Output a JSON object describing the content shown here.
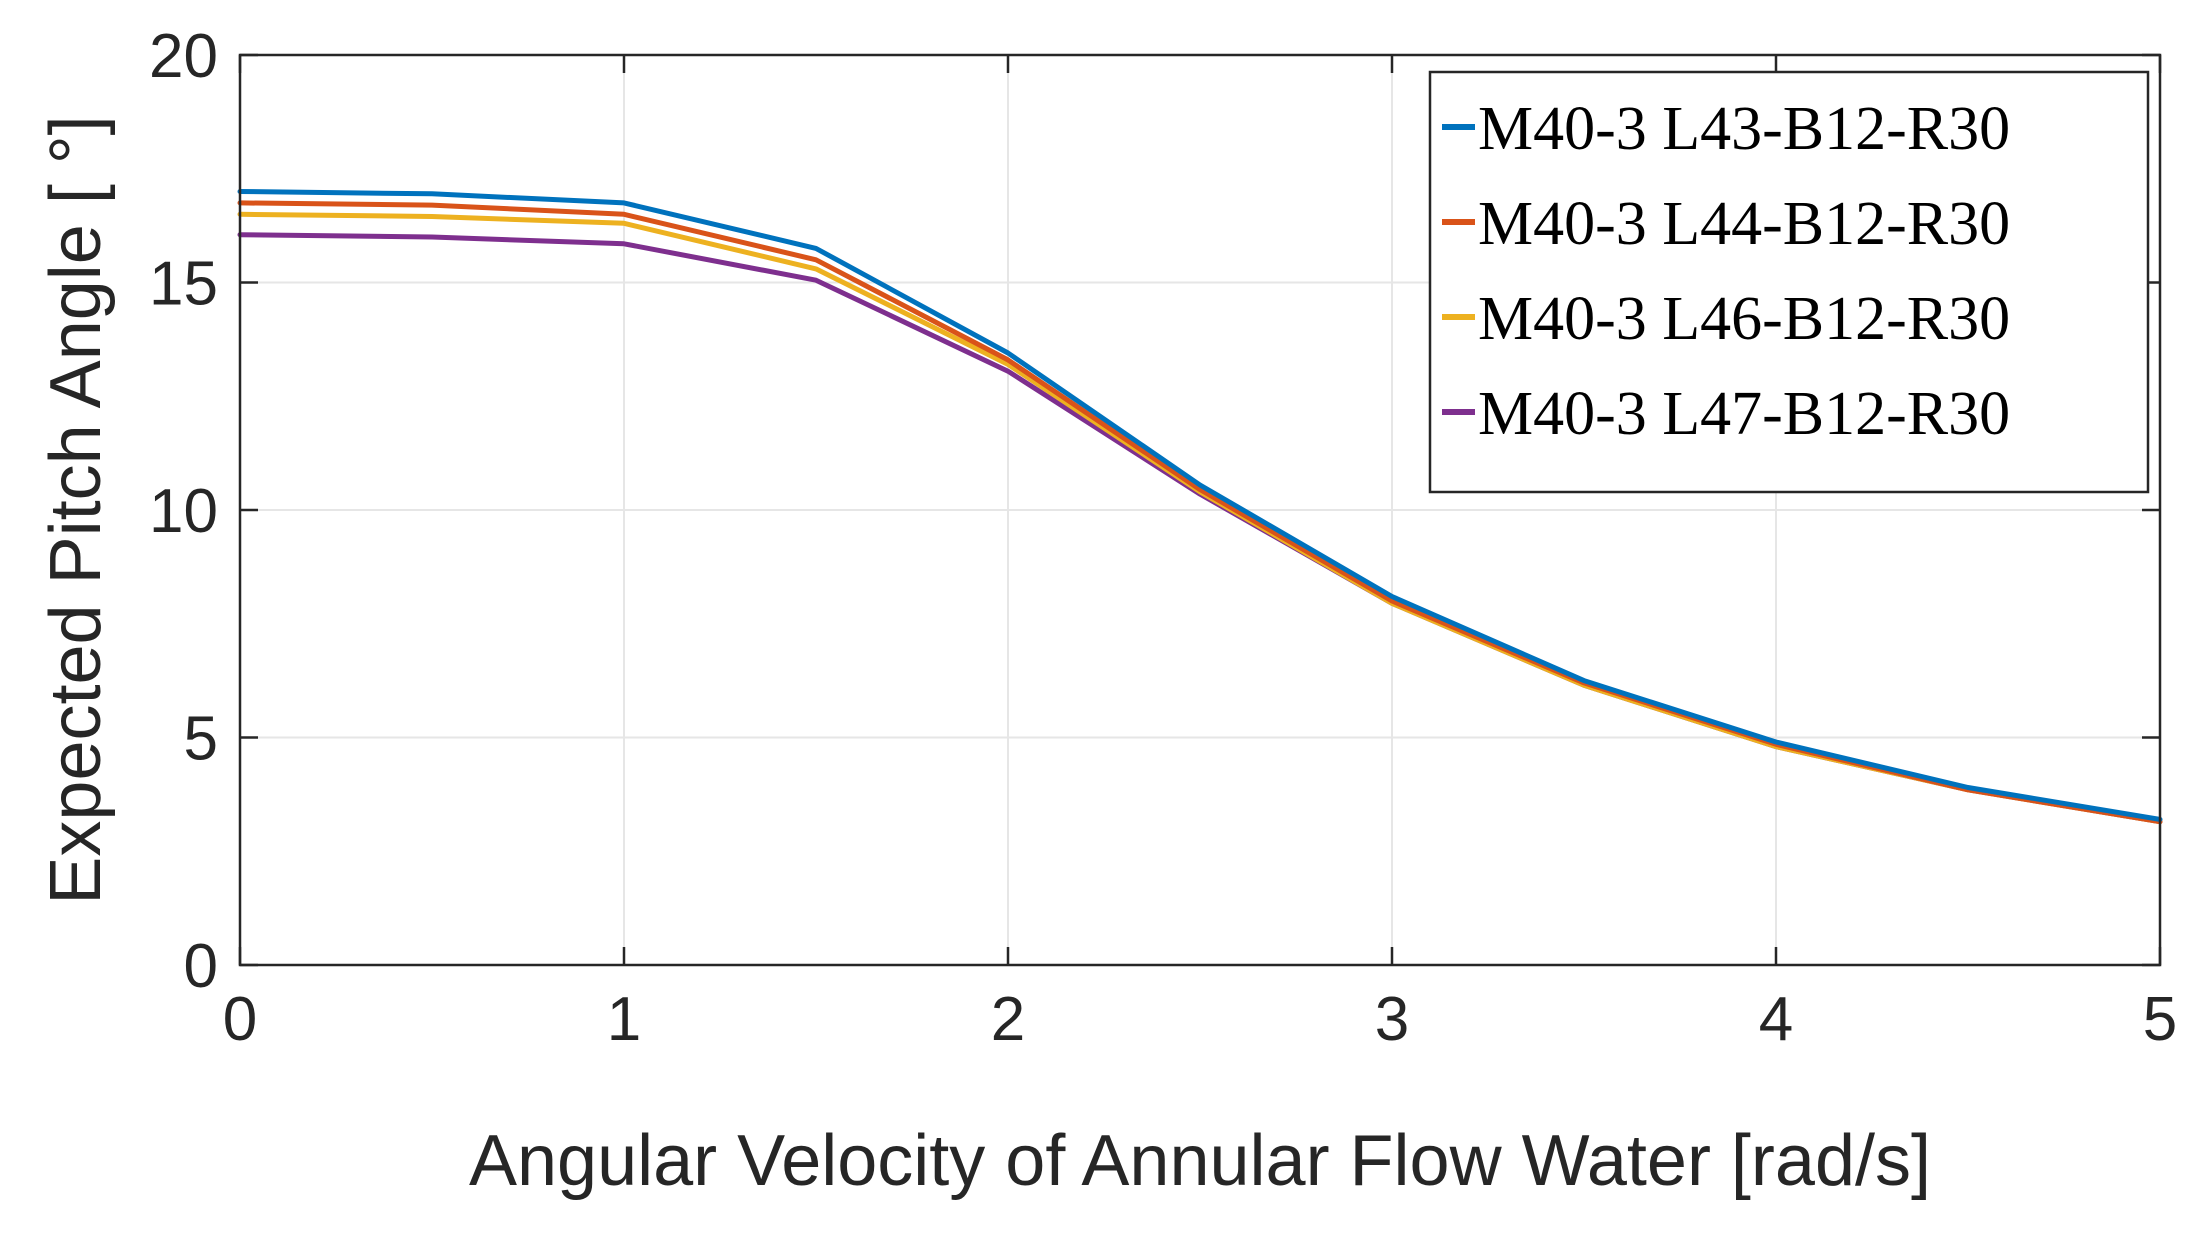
{
  "chart_data": {
    "type": "line",
    "title": "",
    "xlabel": "Angular Velocity of Annular Flow Water [rad/s]",
    "ylabel": "Expected Pitch Angle [ °]",
    "xlim": [
      0,
      5
    ],
    "ylim": [
      0,
      20
    ],
    "xticks": [
      0,
      1,
      2,
      3,
      4,
      5
    ],
    "yticks": [
      0,
      5,
      10,
      15,
      20
    ],
    "xtick_labels": [
      "0",
      "1",
      "2",
      "3",
      "4",
      "5"
    ],
    "ytick_labels": [
      "0",
      "5",
      "10",
      "15",
      "20"
    ],
    "grid": true,
    "legend_position": "top-right",
    "x": [
      0,
      0.5,
      1,
      1.5,
      2,
      2.5,
      3,
      3.5,
      4,
      4.5,
      5
    ],
    "series": [
      {
        "name": "M40-3 L43-B12-R30",
        "color": "#0072BD",
        "values": [
          17.0,
          16.95,
          16.75,
          15.75,
          13.45,
          10.55,
          8.1,
          6.25,
          4.9,
          3.9,
          3.2
        ]
      },
      {
        "name": "M40-3 L44-B12-R30",
        "color": "#D95319",
        "values": [
          16.75,
          16.7,
          16.5,
          15.5,
          13.3,
          10.45,
          8.0,
          6.2,
          4.85,
          3.85,
          3.15
        ]
      },
      {
        "name": "M40-3 L46-B12-R30",
        "color": "#EDB120",
        "values": [
          16.5,
          16.45,
          16.3,
          15.3,
          13.2,
          10.4,
          7.95,
          6.15,
          4.8,
          3.85,
          3.15
        ]
      },
      {
        "name": "M40-3 L47-B12-R30",
        "color": "#7E2F8E",
        "values": [
          16.05,
          16.0,
          15.85,
          15.05,
          13.05,
          10.35,
          7.95,
          6.15,
          4.8,
          3.85,
          3.15
        ]
      }
    ]
  }
}
